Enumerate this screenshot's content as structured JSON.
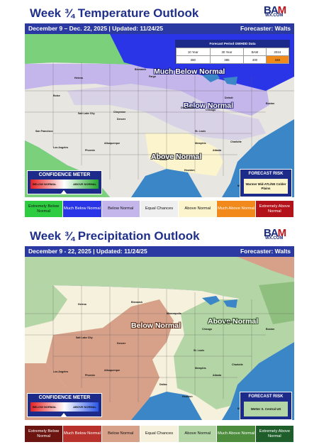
{
  "temp": {
    "title": "Week ¾ Temperature Outlook",
    "dates": "December 9 – Dec. 22, 2025 | Updated: 11/24/25",
    "forecaster": "Forecaster: Walts",
    "gwhdd": {
      "title": "Forecast Period GWHDD Data",
      "headers": [
        "10 Year",
        "30 Year",
        "BAM",
        "2024"
      ],
      "values": [
        "380",
        "385",
        "400",
        "348"
      ]
    },
    "region_labels": [
      "Much Below Normal",
      "Below Normal",
      "Above Normal"
    ],
    "confidence": {
      "title": "CONFIDENCE METER",
      "left": "BELOW NORMAL",
      "right": "ABOVE NORMAL"
    },
    "risk": {
      "title": "FORECAST RISK",
      "text": "Warmer Mid-ATL/NE Colder Plains"
    },
    "legend": [
      {
        "label": "Extremely Below Normal",
        "color": "#2ecc40",
        "text_color": "#111111"
      },
      {
        "label": "Much Below Normal",
        "color": "#2a35e8",
        "text_color": "#ffffff"
      },
      {
        "label": "Below Normal",
        "color": "#c4b6ea",
        "text_color": "#111111"
      },
      {
        "label": "Equal Chances",
        "color": "#efefef",
        "text_color": "#111111"
      },
      {
        "label": "Above Normal",
        "color": "#fbf4cc",
        "text_color": "#111111"
      },
      {
        "label": "Much Above Normal",
        "color": "#f2891c",
        "text_color": "#ffffff"
      },
      {
        "label": "Extremely Above Normal",
        "color": "#b3121a",
        "text_color": "#ffffff"
      }
    ],
    "cities": [
      "Bismarck",
      "Fargo",
      "Helena",
      "Boise",
      "Cheyenne",
      "Denver",
      "Salt Lake City",
      "San Francisco",
      "Los Angeles",
      "Phoenix",
      "Albuquerque",
      "Dallas",
      "Houston",
      "Des Moines",
      "Chicago",
      "Detroit",
      "St. Louis",
      "Memphis",
      "Atlanta",
      "Charlotte",
      "Boston",
      "Miami"
    ]
  },
  "precip": {
    "title": "Week ¾ Precipitation Outlook",
    "dates": "December 9 - 22, 2025 | Updated: 11/24/25",
    "forecaster": "Forecaster: Walts",
    "region_labels": [
      "Below Normal",
      "Above Normal"
    ],
    "confidence": {
      "title": "CONFIDENCE METER",
      "left": "BELOW NORMAL",
      "right": "ABOVE NORMAL"
    },
    "risk": {
      "title": "FORECAST RISK",
      "text": "Wetter S. Central US"
    },
    "legend": [
      {
        "label": "Extremely Below Normal",
        "color": "#6b1410",
        "text_color": "#ffffff"
      },
      {
        "label": "Much Below Normal",
        "color": "#b8312a",
        "text_color": "#ffffff"
      },
      {
        "label": "Below Normal",
        "color": "#d7a089",
        "text_color": "#111111"
      },
      {
        "label": "Equal Chances",
        "color": "#f6f1dc",
        "text_color": "#111111"
      },
      {
        "label": "Above Normal",
        "color": "#b4d5a6",
        "text_color": "#111111"
      },
      {
        "label": "Much Above Normal",
        "color": "#4c8c3c",
        "text_color": "#ffffff"
      },
      {
        "label": "Extremely Above Normal",
        "color": "#1f5e2a",
        "text_color": "#ffffff"
      }
    ],
    "cities": [
      "Bismarck",
      "Helena",
      "Minneapolis",
      "Salt Lake City",
      "Denver",
      "Los Angeles",
      "Phoenix",
      "Albuquerque",
      "Dallas",
      "Houston",
      "Chicago",
      "Detroit",
      "St. Louis",
      "Memphis",
      "Atlanta",
      "Charlotte",
      "Boston",
      "Miami"
    ]
  },
  "logo": {
    "name": "BAM",
    "sub": "WX.COM"
  }
}
